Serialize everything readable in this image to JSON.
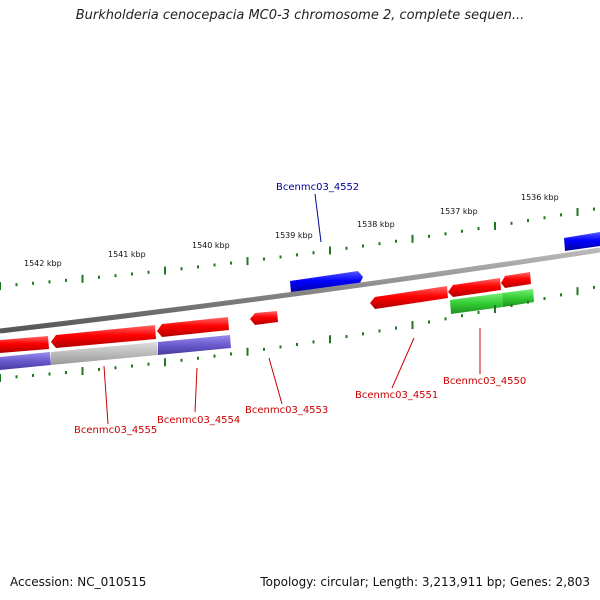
{
  "title": "Burkholderia cenocepacia MC0-3 chromosome 2, complete sequen...",
  "footer": {
    "accession": "Accession: NC_010515",
    "topology": "Topology: circular; Length: 3,213,911 bp; Genes: 2,803"
  },
  "colors": {
    "forward_gene": "#ff0000",
    "forward_gene_blue": "#0000ff",
    "reverse_cog_purple": "#6a5acd",
    "reverse_cog_gray": "#bbbbbb",
    "reverse_cog_green": "#33cc33",
    "backbone": "#888888",
    "tick": "#227722",
    "label_red": "#cc0000",
    "label_blue": "#000099"
  },
  "ticks": [
    {
      "label": "1542 kbp"
    },
    {
      "label": "1541 kbp"
    },
    {
      "label": "1540 kbp"
    },
    {
      "label": "1539 kbp"
    },
    {
      "label": "1538 kbp"
    },
    {
      "label": "1537 kbp"
    },
    {
      "label": "1536 kbp"
    }
  ],
  "genes": [
    {
      "name": "Bcenmc03_4552",
      "color": "label_blue"
    },
    {
      "name": "Bcenmc03_4555",
      "color": "label_red"
    },
    {
      "name": "Bcenmc03_4554",
      "color": "label_red"
    },
    {
      "name": "Bcenmc03_4553",
      "color": "label_red"
    },
    {
      "name": "Bcenmc03_4551",
      "color": "label_red"
    },
    {
      "name": "Bcenmc03_4550",
      "color": "label_red"
    }
  ]
}
